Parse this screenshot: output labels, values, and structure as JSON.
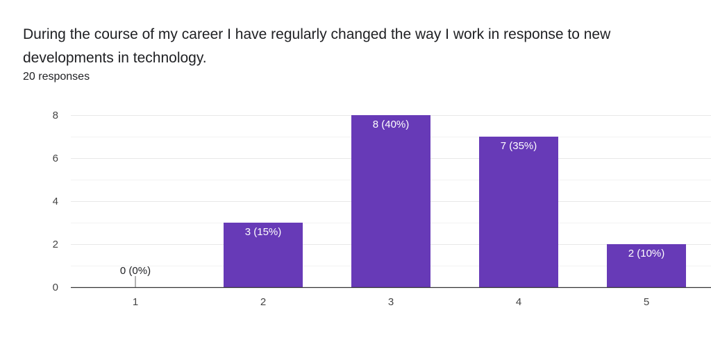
{
  "question": {
    "title": "During the course of my career I have regularly changed the way I work in response to new developments in technology.",
    "responses": "20 responses"
  },
  "colors": {
    "bar": "#673ab7",
    "grid": "#e8e8e8",
    "axis": "#333333"
  },
  "chart_data": {
    "type": "bar",
    "title": "",
    "xlabel": "",
    "ylabel": "",
    "categories": [
      "1",
      "2",
      "3",
      "4",
      "5"
    ],
    "values": [
      0,
      3,
      8,
      7,
      2
    ],
    "data_labels": [
      "0 (0%)",
      "3 (15%)",
      "8 (40%)",
      "7 (35%)",
      "2 (10%)"
    ],
    "ylim": [
      0,
      8
    ],
    "yticks": [
      "0",
      "2",
      "4",
      "6",
      "8"
    ],
    "grid": true,
    "legend": "none"
  }
}
